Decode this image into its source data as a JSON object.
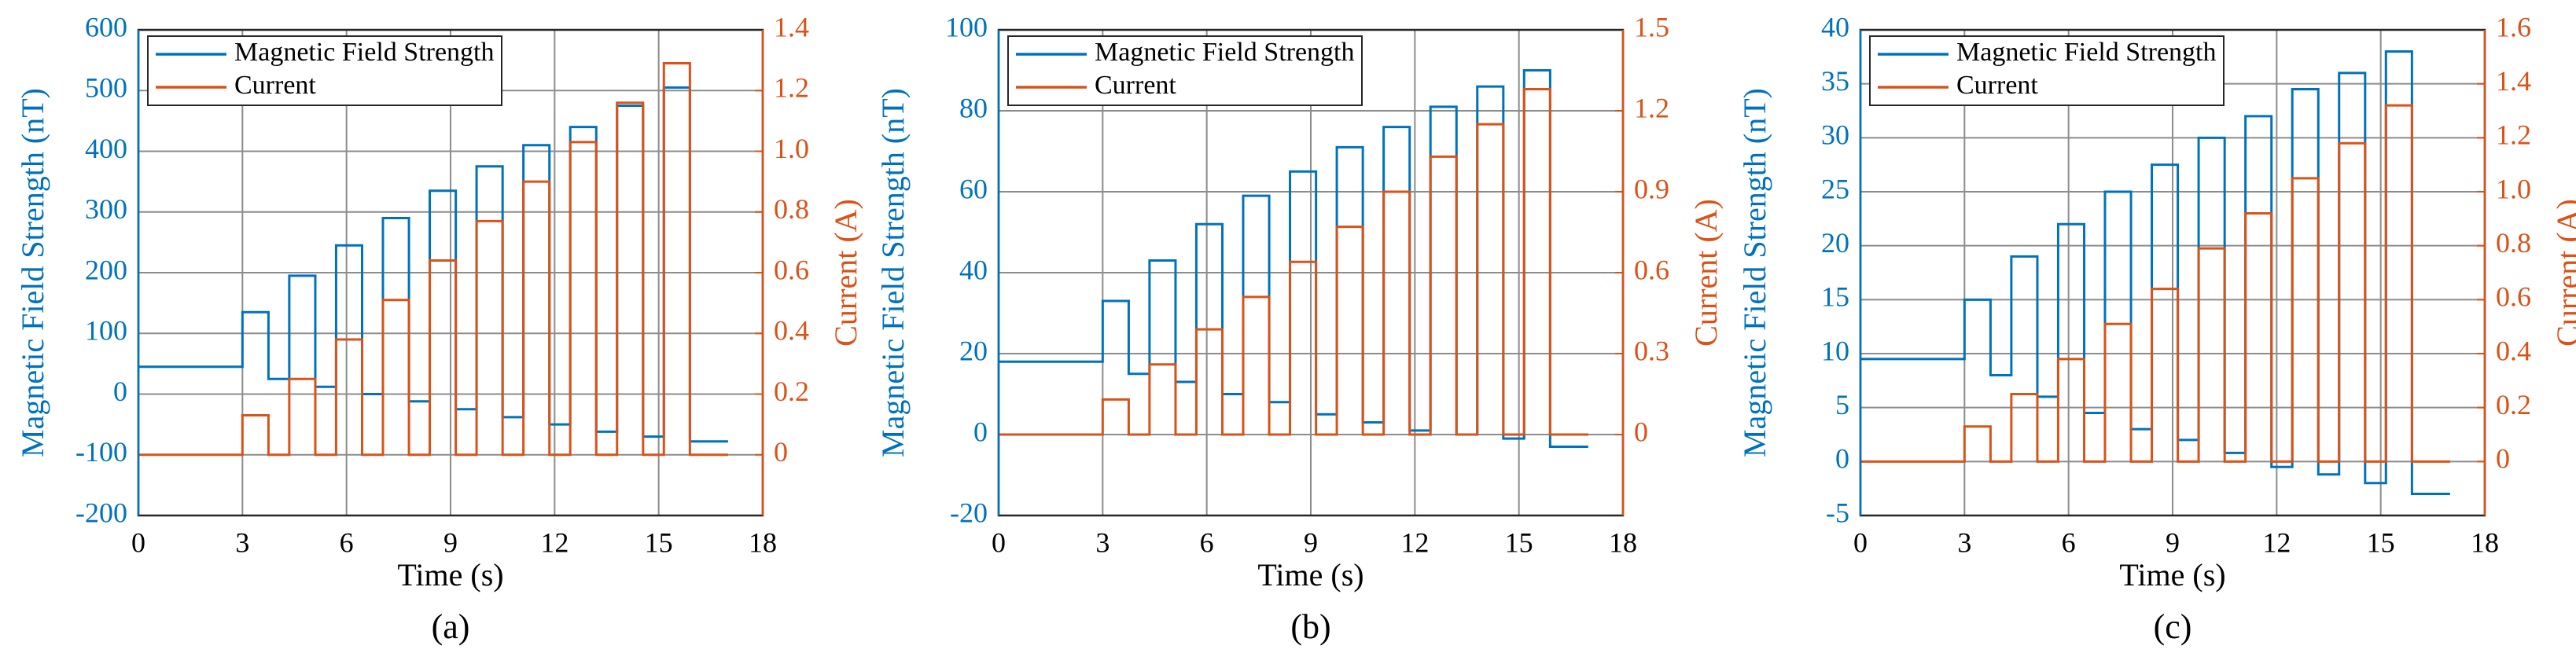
{
  "chart_data": [
    {
      "type": "line",
      "caption": "(a)",
      "xlabel": "Time (s)",
      "ylabel": "Magnetic Field Strength (nT)",
      "y2label": "Current (A)",
      "x": [
        0,
        3,
        3,
        3.75,
        3.75,
        4.35,
        4.35,
        5.1,
        5.1,
        5.7,
        5.7,
        6.45,
        6.45,
        7.05,
        7.05,
        7.8,
        7.8,
        8.4,
        8.4,
        9.15,
        9.15,
        9.75,
        9.75,
        10.5,
        10.5,
        11.1,
        11.1,
        11.85,
        11.85,
        12.45,
        12.45,
        13.2,
        13.2,
        13.8,
        13.8,
        14.55,
        14.55,
        15.15,
        15.15,
        15.9,
        15.9,
        17
      ],
      "series": [
        {
          "name": "Magnetic Field Strength",
          "color": "#0072bd",
          "axis": "y",
          "values": [
            45,
            45,
            135,
            135,
            25,
            25,
            195,
            195,
            12,
            12,
            245,
            245,
            0,
            0,
            290,
            290,
            -12,
            -12,
            335,
            335,
            -25,
            -25,
            375,
            375,
            -38,
            -38,
            410,
            410,
            -50,
            -50,
            440,
            440,
            -62,
            -62,
            475,
            475,
            -70,
            -70,
            505,
            505,
            -78,
            -78
          ]
        },
        {
          "name": "Current",
          "color": "#d95319",
          "axis": "y2",
          "values": [
            0,
            0,
            0.13,
            0.13,
            0,
            0,
            0.25,
            0.25,
            0,
            0,
            0.38,
            0.38,
            0,
            0,
            0.51,
            0.51,
            0,
            0,
            0.64,
            0.64,
            0,
            0,
            0.77,
            0.77,
            0,
            0,
            0.9,
            0.9,
            0,
            0,
            1.03,
            1.03,
            0,
            0,
            1.16,
            1.16,
            0,
            0,
            1.29,
            1.29,
            0,
            0
          ]
        }
      ],
      "xlim": [
        0,
        18
      ],
      "xticks": [
        0,
        3,
        6,
        9,
        12,
        15,
        18
      ],
      "ylim": [
        -200,
        600
      ],
      "yticks": [
        -200,
        -100,
        0,
        100,
        200,
        300,
        400,
        500,
        600
      ],
      "y2lim": [
        -0.2,
        1.4
      ],
      "y2ticks": [
        0,
        0.2,
        0.4,
        0.6,
        0.8,
        {
          "value": 1.0,
          "label": "1.0"
        },
        1.2,
        1.4
      ],
      "grid": true,
      "legend": "upper left"
    },
    {
      "type": "line",
      "caption": "(b)",
      "xlabel": "Time (s)",
      "ylabel": "Magnetic Field Strength (nT)",
      "y2label": "Current (A)",
      "x": [
        0,
        3,
        3,
        3.75,
        3.75,
        4.35,
        4.35,
        5.1,
        5.1,
        5.7,
        5.7,
        6.45,
        6.45,
        7.05,
        7.05,
        7.8,
        7.8,
        8.4,
        8.4,
        9.15,
        9.15,
        9.75,
        9.75,
        10.5,
        10.5,
        11.1,
        11.1,
        11.85,
        11.85,
        12.45,
        12.45,
        13.2,
        13.2,
        13.8,
        13.8,
        14.55,
        14.55,
        15.15,
        15.15,
        15.9,
        15.9,
        17
      ],
      "series": [
        {
          "name": "Magnetic Field Strength",
          "color": "#0072bd",
          "axis": "y",
          "values": [
            18,
            18,
            33,
            33,
            15,
            15,
            43,
            43,
            13,
            13,
            52,
            52,
            10,
            10,
            59,
            59,
            8,
            8,
            65,
            65,
            5,
            5,
            71,
            71,
            3,
            3,
            76,
            76,
            1,
            1,
            81,
            81,
            0,
            0,
            86,
            86,
            -1,
            -1,
            90,
            90,
            -3,
            -3
          ]
        },
        {
          "name": "Current",
          "color": "#d95319",
          "axis": "y2",
          "values": [
            0,
            0,
            0.13,
            0.13,
            0,
            0,
            0.26,
            0.26,
            0,
            0,
            0.39,
            0.39,
            0,
            0,
            0.51,
            0.51,
            0,
            0,
            0.64,
            0.64,
            0,
            0,
            0.77,
            0.77,
            0,
            0,
            0.9,
            0.9,
            0,
            0,
            1.03,
            1.03,
            0,
            0,
            1.15,
            1.15,
            0,
            0,
            1.28,
            1.28,
            0,
            0
          ]
        }
      ],
      "xlim": [
        0,
        18
      ],
      "xticks": [
        0,
        3,
        6,
        9,
        12,
        15,
        18
      ],
      "ylim": [
        -20,
        100
      ],
      "yticks": [
        -20,
        0,
        20,
        40,
        60,
        80,
        100
      ],
      "y2lim": [
        -0.3,
        1.5
      ],
      "y2ticks": [
        0,
        0.3,
        0.6,
        0.9,
        1.2,
        1.5
      ],
      "grid": true,
      "legend": "upper left"
    },
    {
      "type": "line",
      "caption": "(c)",
      "xlabel": "Time (s)",
      "ylabel": "Magnetic Field Strength (nT)",
      "y2label": "Current (A)",
      "x": [
        0,
        3,
        3,
        3.75,
        3.75,
        4.35,
        4.35,
        5.1,
        5.1,
        5.7,
        5.7,
        6.45,
        6.45,
        7.05,
        7.05,
        7.8,
        7.8,
        8.4,
        8.4,
        9.15,
        9.15,
        9.75,
        9.75,
        10.5,
        10.5,
        11.1,
        11.1,
        11.85,
        11.85,
        12.45,
        12.45,
        13.2,
        13.2,
        13.8,
        13.8,
        14.55,
        14.55,
        15.15,
        15.15,
        15.9,
        15.9,
        17
      ],
      "series": [
        {
          "name": "Magnetic Field Strength",
          "color": "#0072bd",
          "axis": "y",
          "values": [
            9.5,
            9.5,
            15,
            15,
            8,
            8,
            19,
            19,
            6,
            6,
            22,
            22,
            4.5,
            4.5,
            25,
            25,
            3,
            3,
            27.5,
            27.5,
            2,
            2,
            30,
            30,
            0.8,
            0.8,
            32,
            32,
            -0.5,
            -0.5,
            34.5,
            34.5,
            -1.2,
            -1.2,
            36,
            36,
            -2,
            -2,
            38,
            38,
            -3,
            -3
          ]
        },
        {
          "name": "Current",
          "color": "#d95319",
          "axis": "y2",
          "values": [
            0,
            0,
            0.13,
            0.13,
            0,
            0,
            0.25,
            0.25,
            0,
            0,
            0.38,
            0.38,
            0,
            0,
            0.51,
            0.51,
            0,
            0,
            0.64,
            0.64,
            0,
            0,
            0.79,
            0.79,
            0,
            0,
            0.92,
            0.92,
            0,
            0,
            1.05,
            1.05,
            0,
            0,
            1.18,
            1.18,
            0,
            0,
            1.32,
            1.32,
            0,
            0
          ]
        }
      ],
      "xlim": [
        0,
        18
      ],
      "xticks": [
        0,
        3,
        6,
        9,
        12,
        15,
        18
      ],
      "ylim": [
        -5,
        40
      ],
      "yticks": [
        -5,
        0,
        5,
        10,
        15,
        20,
        25,
        30,
        35,
        40
      ],
      "y2lim": [
        -0.2,
        1.6
      ],
      "y2ticks": [
        0,
        0.2,
        0.4,
        0.6,
        0.8,
        {
          "value": 1.0,
          "label": "1.0"
        },
        1.2,
        1.4,
        1.6
      ],
      "grid": true,
      "legend": "upper left"
    }
  ]
}
